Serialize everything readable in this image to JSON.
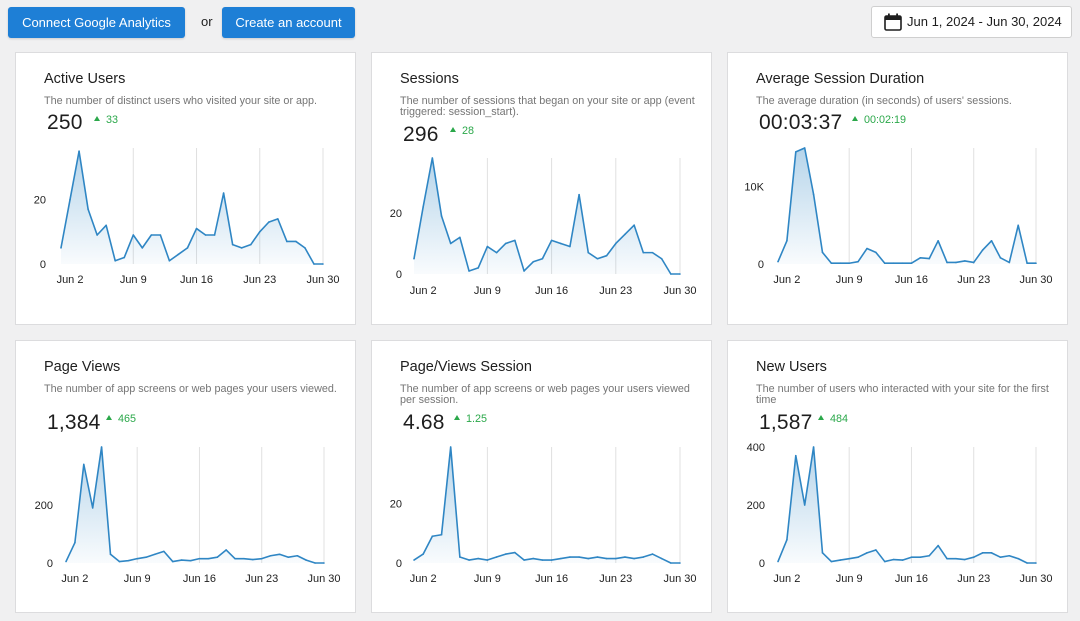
{
  "toolbar": {
    "connect_label": "Connect Google Analytics",
    "or_label": "or",
    "create_label": "Create an account",
    "date_range": "Jun 1, 2024 - Jun 30, 2024",
    "date_icon": "calendar-icon"
  },
  "colors": {
    "accent": "#1e7fd6",
    "line": "#2f86c4",
    "delta_positive": "#2ba84a",
    "grid": "#e0e0e0"
  },
  "x_labels": [
    "Jun 2",
    "Jun 9",
    "Jun 16",
    "Jun 23",
    "Jun 30"
  ],
  "cards": [
    {
      "id": "active-users",
      "title": "Active Users",
      "description": "The number of distinct users who visited your site or app.",
      "value": "250",
      "delta": "33",
      "y_ticks": [
        "0",
        "20"
      ],
      "chart_data": {
        "type": "area",
        "x": [
          1,
          2,
          3,
          4,
          5,
          6,
          7,
          8,
          9,
          10,
          11,
          12,
          13,
          14,
          15,
          16,
          17,
          18,
          19,
          20,
          21,
          22,
          23,
          24,
          25,
          26,
          27,
          28,
          29,
          30
        ],
        "values": [
          5,
          20,
          35,
          17,
          9,
          12,
          1,
          2,
          9,
          5,
          9,
          9,
          1,
          3,
          5,
          11,
          9,
          9,
          22,
          6,
          5,
          6,
          10,
          13,
          14,
          7,
          7,
          5,
          0,
          0
        ],
        "ylim": [
          0,
          36
        ],
        "y_ticks": [
          0,
          20
        ]
      }
    },
    {
      "id": "sessions",
      "title": "Sessions",
      "description": "The number of sessions that began on your site or app (event triggered: session_start).",
      "value": "296",
      "delta": "28",
      "y_ticks": [
        "0",
        "20"
      ],
      "chart_data": {
        "type": "area",
        "x": [
          1,
          2,
          3,
          4,
          5,
          6,
          7,
          8,
          9,
          10,
          11,
          12,
          13,
          14,
          15,
          16,
          17,
          18,
          19,
          20,
          21,
          22,
          23,
          24,
          25,
          26,
          27,
          28,
          29,
          30
        ],
        "values": [
          5,
          22,
          38,
          19,
          10,
          12,
          1,
          2,
          9,
          7,
          10,
          11,
          1,
          4,
          5,
          11,
          10,
          9,
          26,
          7,
          5,
          6,
          10,
          13,
          16,
          7,
          7,
          5,
          0,
          0
        ],
        "ylim": [
          0,
          38
        ],
        "y_ticks": [
          0,
          20
        ]
      }
    },
    {
      "id": "avg-session-duration",
      "title": "Average Session Duration",
      "description": "The average duration (in seconds) of users' sessions.",
      "value": "00:03:37",
      "delta": "00:02:19",
      "y_ticks": [
        "0",
        "10K"
      ],
      "chart_data": {
        "type": "area",
        "x": [
          1,
          2,
          3,
          4,
          5,
          6,
          7,
          8,
          9,
          10,
          11,
          12,
          13,
          14,
          15,
          16,
          17,
          18,
          19,
          20,
          21,
          22,
          23,
          24,
          25,
          26,
          27,
          28,
          29,
          30
        ],
        "values": [
          300,
          3000,
          14500,
          15000,
          9000,
          1500,
          100,
          100,
          100,
          300,
          2000,
          1500,
          100,
          100,
          100,
          100,
          800,
          700,
          3000,
          200,
          200,
          400,
          200,
          1800,
          3000,
          800,
          200,
          5000,
          100,
          100
        ],
        "ylim": [
          0,
          15000
        ],
        "y_ticks": [
          0,
          10000
        ]
      }
    },
    {
      "id": "page-views",
      "title": "Page Views",
      "description": "The number of app screens or web pages your users viewed.",
      "value": "1,384",
      "delta": "465",
      "y_ticks": [
        "0",
        "200"
      ],
      "chart_data": {
        "type": "area",
        "x": [
          1,
          2,
          3,
          4,
          5,
          6,
          7,
          8,
          9,
          10,
          11,
          12,
          13,
          14,
          15,
          16,
          17,
          18,
          19,
          20,
          21,
          22,
          23,
          24,
          25,
          26,
          27,
          28,
          29,
          30
        ],
        "values": [
          5,
          70,
          340,
          190,
          400,
          30,
          5,
          8,
          15,
          20,
          30,
          40,
          5,
          10,
          8,
          15,
          15,
          20,
          45,
          15,
          15,
          12,
          15,
          25,
          30,
          20,
          25,
          10,
          0,
          0
        ],
        "ylim": [
          0,
          400
        ],
        "y_ticks": [
          0,
          200
        ]
      }
    },
    {
      "id": "page-views-session",
      "title": "Page/Views Session",
      "description": "The number of app screens or web pages your users viewed per session.",
      "value": "4.68",
      "delta": "1.25",
      "y_ticks": [
        "0",
        "20"
      ],
      "chart_data": {
        "type": "area",
        "x": [
          1,
          2,
          3,
          4,
          5,
          6,
          7,
          8,
          9,
          10,
          11,
          12,
          13,
          14,
          15,
          16,
          17,
          18,
          19,
          20,
          21,
          22,
          23,
          24,
          25,
          26,
          27,
          28,
          29,
          30
        ],
        "values": [
          1,
          3,
          9,
          9.5,
          39,
          2,
          1,
          1.5,
          1,
          2,
          3,
          3.5,
          1,
          1.5,
          1,
          1,
          1.5,
          2,
          2,
          1.5,
          2,
          1.5,
          1.5,
          2,
          1.5,
          2,
          3,
          1.5,
          0,
          0
        ],
        "ylim": [
          0,
          39
        ],
        "y_ticks": [
          0,
          20
        ]
      }
    },
    {
      "id": "new-users",
      "title": "New Users",
      "description": "The number of users who interacted with your site for the first time",
      "value": "1,587",
      "delta": "484",
      "y_ticks": [
        "0",
        "200",
        "400"
      ],
      "chart_data": {
        "type": "area",
        "x": [
          1,
          2,
          3,
          4,
          5,
          6,
          7,
          8,
          9,
          10,
          11,
          12,
          13,
          14,
          15,
          16,
          17,
          18,
          19,
          20,
          21,
          22,
          23,
          24,
          25,
          26,
          27,
          28,
          29,
          30
        ],
        "values": [
          5,
          80,
          370,
          200,
          400,
          35,
          5,
          10,
          15,
          20,
          35,
          45,
          5,
          12,
          10,
          20,
          20,
          25,
          60,
          15,
          15,
          12,
          20,
          35,
          35,
          20,
          25,
          15,
          0,
          0
        ],
        "ylim": [
          0,
          400
        ],
        "y_ticks": [
          0,
          200,
          400
        ]
      }
    }
  ]
}
